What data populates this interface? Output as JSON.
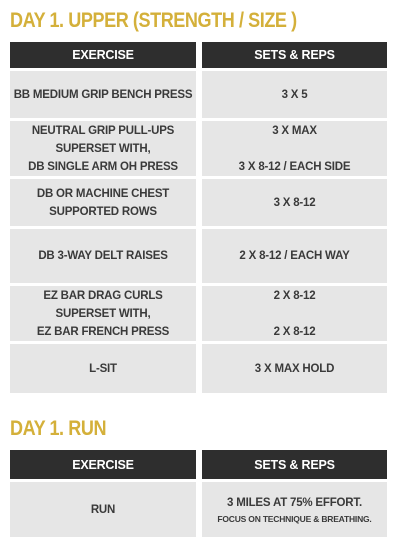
{
  "day1_upper": {
    "title": "DAY 1. UPPER (STRENGTH / SIZE )",
    "header": {
      "exercise": "EXERCISE",
      "sets": "SETS & REPS"
    },
    "rows": [
      {
        "exercise": [
          "BB MEDIUM GRIP BENCH PRESS"
        ],
        "sets": [
          "3 X 5"
        ]
      },
      {
        "exercise": [
          "NEUTRAL GRIP PULL-UPS",
          "SUPERSET WITH,",
          "DB SINGLE ARM OH PRESS"
        ],
        "sets": [
          "3 X MAX",
          "3 X 8-12 / EACH SIDE"
        ]
      },
      {
        "exercise": [
          "DB OR MACHINE CHEST",
          "SUPPORTED ROWS"
        ],
        "sets": [
          "3 X 8-12"
        ]
      },
      {
        "exercise": [
          "DB 3-WAY DELT RAISES"
        ],
        "sets": [
          "2 X 8-12 / EACH WAY"
        ]
      },
      {
        "exercise": [
          "EZ BAR DRAG CURLS",
          "SUPERSET WITH,",
          "EZ BAR FRENCH PRESS"
        ],
        "sets": [
          "2 X 8-12",
          "2 X 8-12"
        ]
      },
      {
        "exercise": [
          "L-SIT"
        ],
        "sets": [
          "3 X MAX HOLD"
        ]
      }
    ]
  },
  "day1_run": {
    "title": "DAY 1. RUN",
    "header": {
      "exercise": "EXERCISE",
      "sets": "SETS & REPS"
    },
    "rows": [
      {
        "exercise": [
          "RUN"
        ],
        "sets": [
          "3 MILES AT 75% EFFORT.",
          "FOCUS ON TECHNIQUE & BREATHING."
        ]
      }
    ]
  },
  "colors": {
    "title": "#d4b03a",
    "header_bg": "#2e2e2e",
    "row_bg": "#e6e6e6",
    "text": "#3a3a3a"
  }
}
